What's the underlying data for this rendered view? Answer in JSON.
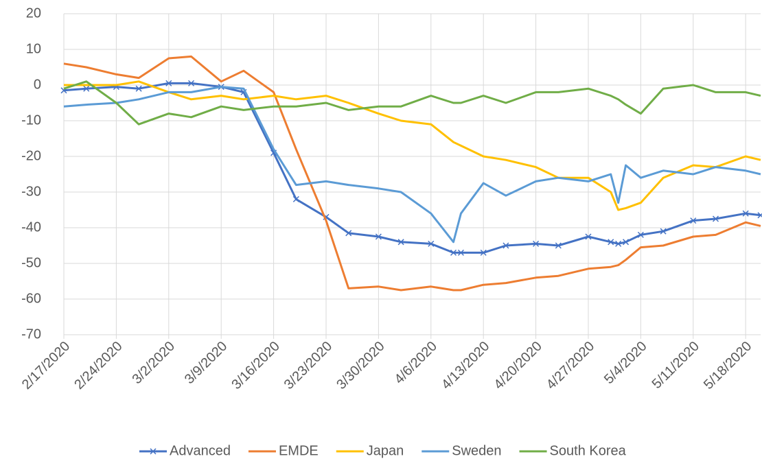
{
  "chart_data": {
    "type": "line",
    "x": [
      "2/17/2020",
      "2/20/2020",
      "2/24/2020",
      "2/27/2020",
      "3/2/2020",
      "3/5/2020",
      "3/9/2020",
      "3/12/2020",
      "3/16/2020",
      "3/19/2020",
      "3/23/2020",
      "3/26/2020",
      "3/30/2020",
      "4/2/2020",
      "4/6/2020",
      "4/9/2020",
      "4/10/2020",
      "4/13/2020",
      "4/16/2020",
      "4/20/2020",
      "4/23/2020",
      "4/27/2020",
      "4/30/2020",
      "5/1/2020",
      "5/2/2020",
      "5/4/2020",
      "5/7/2020",
      "5/11/2020",
      "5/14/2020",
      "5/18/2020",
      "5/20/2020"
    ],
    "series": [
      {
        "name": "Advanced",
        "color": "#4472c4",
        "marker": "x",
        "values": [
          -1.5,
          -1,
          -0.5,
          -1,
          0.5,
          0.5,
          -0.5,
          -2,
          -19,
          -32,
          -37,
          -41.5,
          -42.5,
          -44,
          -44.5,
          -47,
          -47,
          -47,
          -45,
          -44.5,
          -45,
          -42.5,
          -44,
          -44.5,
          -44,
          -42,
          -41,
          -38,
          -37.5,
          -36,
          -36.5
        ]
      },
      {
        "name": "EMDE",
        "color": "#ed7d31",
        "values": [
          6,
          5,
          3,
          2,
          7.5,
          8,
          1,
          4,
          -2,
          -18,
          -38,
          -57,
          -56.5,
          -57.5,
          -56.5,
          -57.5,
          -57.5,
          -56,
          -55.5,
          -54,
          -53.5,
          -51.5,
          -51,
          -50.5,
          -49,
          -45.5,
          -45,
          -42.5,
          -42,
          -38.5,
          -39.5
        ]
      },
      {
        "name": "Japan",
        "color": "#ffc000",
        "values": [
          0,
          0,
          0,
          1,
          -2,
          -4,
          -3,
          -4,
          -3,
          -4,
          -3,
          -5,
          -8,
          -10,
          -11,
          -16,
          -17,
          -20,
          -21,
          -23,
          -26,
          -26,
          -30,
          -35,
          -34.5,
          -33,
          -26,
          -22.5,
          -23,
          -20,
          -21
        ]
      },
      {
        "name": "Sweden",
        "color": "#5b9bd5",
        "values": [
          -6,
          -5.5,
          -5,
          -4,
          -2,
          -2,
          -0.5,
          -1,
          -18,
          -28,
          -27,
          -28,
          -29,
          -30,
          -36,
          -44,
          -36,
          -27.5,
          -31,
          -27,
          -26,
          -27,
          -25,
          -33,
          -22.5,
          -26,
          -24,
          -25,
          -23,
          -24,
          -25
        ]
      },
      {
        "name": "South Korea",
        "color": "#70ad47",
        "values": [
          -1,
          1,
          -5,
          -11,
          -8,
          -9,
          -6,
          -7,
          -6,
          -6,
          -5,
          -7,
          -6,
          -6,
          -3,
          -5,
          -5,
          -3,
          -5,
          -2,
          -2,
          -1,
          -3,
          -4,
          -5.5,
          -8,
          -1,
          0,
          -2,
          -2,
          -3
        ]
      }
    ],
    "xlim": [
      "2/17/2020",
      "5/20/2020"
    ],
    "xticks": [
      "2/17/2020",
      "2/24/2020",
      "3/2/2020",
      "3/9/2020",
      "3/16/2020",
      "3/23/2020",
      "3/30/2020",
      "4/6/2020",
      "4/13/2020",
      "4/20/2020",
      "4/27/2020",
      "5/4/2020",
      "5/11/2020",
      "5/18/2020"
    ],
    "ylim": [
      -70,
      20
    ],
    "yticks": [
      -70,
      -60,
      -50,
      -40,
      -30,
      -20,
      -10,
      0,
      10,
      20
    ],
    "grid": true,
    "legend": "bottom"
  }
}
